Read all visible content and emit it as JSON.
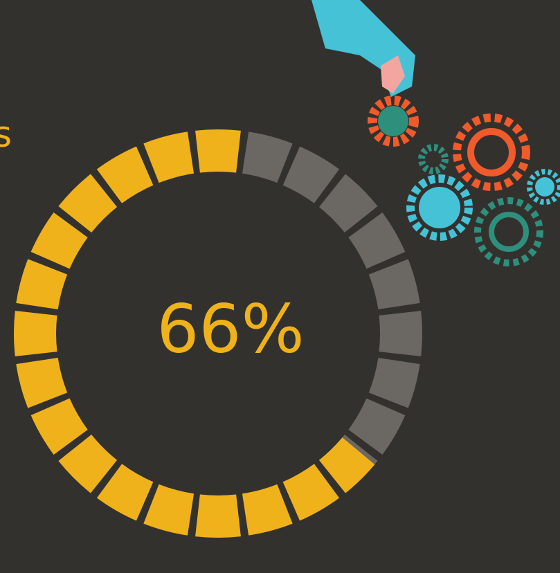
{
  "chart_data": {
    "type": "progress-ring",
    "title": "s",
    "value": 66,
    "value_labels": "66%",
    "color": "#f0b21a",
    "track_color": "#6b6762"
  }
}
